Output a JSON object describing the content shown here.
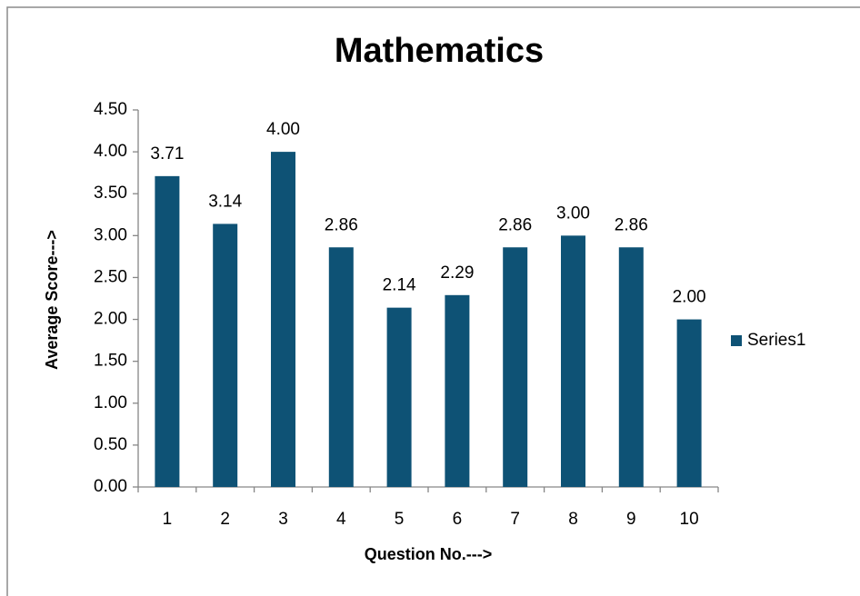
{
  "chart_data": {
    "type": "bar",
    "title": "Mathematics",
    "x_label": "Question No.--->",
    "y_label": "Average Score--->",
    "categories": [
      "1",
      "2",
      "3",
      "4",
      "5",
      "6",
      "7",
      "8",
      "9",
      "10"
    ],
    "series": [
      {
        "name": "Series1",
        "color": "#0e5275",
        "values": [
          3.71,
          3.14,
          4,
          2.86,
          2.14,
          2.29,
          2.86,
          3,
          2.86,
          2
        ],
        "value_labels": [
          "3.71",
          "3.14",
          "4.00",
          "2.86",
          "2.14",
          "2.29",
          "2.86",
          "3.00",
          "2.86",
          "2.00"
        ]
      }
    ],
    "ylim": [
      0,
      4.5
    ],
    "yticks": [
      {
        "value": 0,
        "label": "0.00"
      },
      {
        "value": 0.5,
        "label": "0.50"
      },
      {
        "value": 1,
        "label": "1.00"
      },
      {
        "value": 1.5,
        "label": "1.50"
      },
      {
        "value": 2,
        "label": "2.00"
      },
      {
        "value": 2.5,
        "label": "2.50"
      },
      {
        "value": 3,
        "label": "3.00"
      },
      {
        "value": 3.5,
        "label": "3.50"
      },
      {
        "value": 4,
        "label": "4.00"
      },
      {
        "value": 4.5,
        "label": "4.50"
      }
    ],
    "grid": false,
    "legend": "right"
  }
}
